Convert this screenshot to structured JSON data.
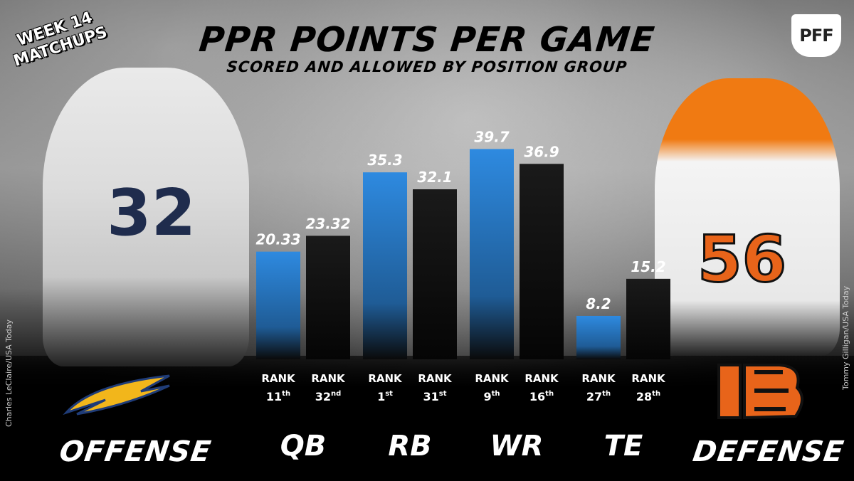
{
  "header": {
    "title": "PPR POINTS PER GAME",
    "subtitle": "SCORED AND ALLOWED BY POSITION GROUP",
    "badge": "WEEK 14 MATCHUPS",
    "logo_text": "PFF"
  },
  "teams": {
    "offense_label": "OFFENSE",
    "defense_label": "DEFENSE",
    "offense_jersey": "32",
    "defense_jersey": "56"
  },
  "credits": {
    "left": "Charles LeClaire/USA Today",
    "right": "Tommy Gilligan/USA Today"
  },
  "colors": {
    "offense": "#2a82d6",
    "defense": "#151515",
    "text": "#ffffff",
    "title": "#000000"
  },
  "chart_data": {
    "type": "bar",
    "title": "PPR POINTS PER GAME",
    "subtitle": "SCORED AND ALLOWED BY POSITION GROUP",
    "categories": [
      "QB",
      "RB",
      "WR",
      "TE"
    ],
    "ylim": [
      0,
      45
    ],
    "grid": false,
    "series": [
      {
        "name": "OFFENSE",
        "values": [
          20.33,
          35.3,
          39.7,
          8.2
        ],
        "labels": [
          "20.33",
          "35.3",
          "39.7",
          "8.2"
        ],
        "ranks": [
          "11th",
          "1st",
          "9th",
          "27th"
        ]
      },
      {
        "name": "DEFENSE",
        "values": [
          23.32,
          32.1,
          36.9,
          15.2
        ],
        "labels": [
          "23.32",
          "32.1",
          "36.9",
          "15.2"
        ],
        "ranks": [
          "32nd",
          "31st",
          "16th",
          "28th"
        ]
      }
    ],
    "rank_label": "RANK"
  }
}
